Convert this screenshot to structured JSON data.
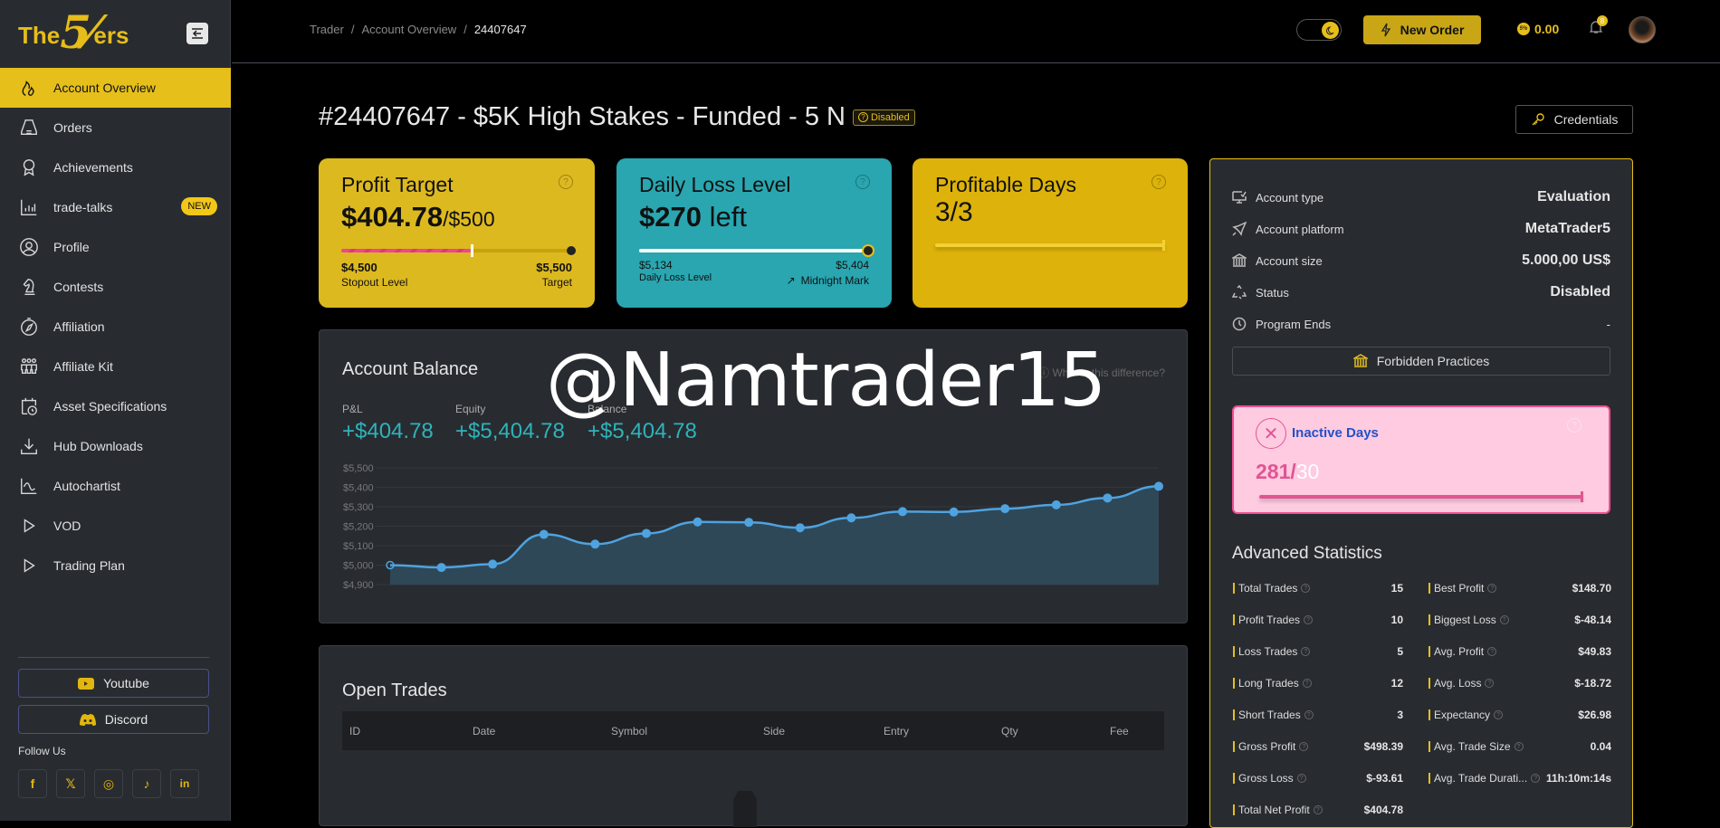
{
  "sidebar": {
    "logo": {
      "the": "The",
      "five": "5%",
      "ers": "ers"
    },
    "items": [
      {
        "label": "Account Overview",
        "icon": "flame-icon",
        "active": true
      },
      {
        "label": "Orders",
        "icon": "orders-icon"
      },
      {
        "label": "Achievements",
        "icon": "award-icon"
      },
      {
        "label": "trade-talks",
        "icon": "bar-chart-icon",
        "badge": "NEW"
      },
      {
        "label": "Profile",
        "icon": "user-circle-icon"
      },
      {
        "label": "Contests",
        "icon": "chess-knight-icon"
      },
      {
        "label": "Affiliation",
        "icon": "compass-icon"
      },
      {
        "label": "Affiliate Kit",
        "icon": "people-icon"
      },
      {
        "label": "Asset Specifications",
        "icon": "calendar-clock-icon"
      },
      {
        "label": "Hub Downloads",
        "icon": "download-icon"
      },
      {
        "label": "Autochartist",
        "icon": "chart-wave-icon"
      },
      {
        "label": "VOD",
        "icon": "play-icon"
      },
      {
        "label": "Trading Plan",
        "icon": "play-icon"
      }
    ],
    "youtube": "Youtube",
    "discord": "Discord",
    "follow_us": "Follow Us",
    "socials": [
      "f",
      "𝕏",
      "◎",
      "♪",
      "in"
    ]
  },
  "topbar": {
    "breadcrumb": [
      "Trader",
      "Account Overview",
      "24407647"
    ],
    "new_order": "New Order",
    "coins": "0.00",
    "coin_symbol": "5%",
    "notifications": "8"
  },
  "page": {
    "title": "#24407647 - $5K High Stakes - Funded - 5 N",
    "status": "Disabled",
    "credentials": "Credentials"
  },
  "cards": {
    "profit_target": {
      "title": "Profit Target",
      "value": "$404.78",
      "target": "/$500",
      "left_value": "$4,500",
      "left_label": "Stopout Level",
      "right_value": "$5,500",
      "right_label": "Target"
    },
    "daily_loss": {
      "title": "Daily Loss Level",
      "value": "$270",
      "suffix": " left",
      "left_value": "$5,134",
      "left_label": "Daily Loss Level",
      "right_value": "$5,404",
      "right_label": "Midnight Mark"
    },
    "profitable_days": {
      "title": "Profitable Days",
      "value": "3/3"
    }
  },
  "balance": {
    "title": "Account Balance",
    "difference_link": "What is this difference?",
    "pnl_label": "P&L",
    "pnl": "+$404.78",
    "equity_label": "Equity",
    "equity": "+$5,404.78",
    "balance_label": "Balance",
    "balance": "+$5,404.78"
  },
  "watermark": "@Namtrader15",
  "chart_data": {
    "type": "area",
    "title": "Account Balance",
    "x": [
      1,
      2,
      3,
      4,
      5,
      6,
      7,
      8,
      9,
      10,
      11,
      12,
      13,
      14,
      15,
      16
    ],
    "values": [
      5000,
      4988,
      5005,
      5158,
      5108,
      5163,
      5222,
      5220,
      5192,
      5243,
      5275,
      5273,
      5290,
      5310,
      5345,
      5405
    ],
    "yticks": [
      "$5,500",
      "$5,400",
      "$5,300",
      "$5,200",
      "$5,100",
      "$5,000",
      "$4,900"
    ],
    "ylim": [
      4900,
      5500
    ],
    "grid": true,
    "color": "#4ea3e0"
  },
  "info": {
    "rows": [
      {
        "label": "Account type",
        "value": "Evaluation",
        "icon": "monitor-check-icon"
      },
      {
        "label": "Account platform",
        "value": "MetaTrader5",
        "icon": "rocket-icon"
      },
      {
        "label": "Account size",
        "value": "5.000,00 US$",
        "icon": "bank-icon"
      },
      {
        "label": "Status",
        "value": "Disabled",
        "icon": "recycle-icon"
      },
      {
        "label": "Program Ends",
        "value": "-",
        "icon": "clock-icon"
      }
    ],
    "forbidden": "Forbidden Practices"
  },
  "inactive": {
    "title": "Inactive Days",
    "value": "281/",
    "max": "30"
  },
  "advanced": {
    "title": "Advanced Statistics",
    "left": [
      {
        "label": "Total Trades",
        "value": "15"
      },
      {
        "label": "Profit Trades",
        "value": "10"
      },
      {
        "label": "Loss Trades",
        "value": "5"
      },
      {
        "label": "Long Trades",
        "value": "12"
      },
      {
        "label": "Short Trades",
        "value": "3"
      },
      {
        "label": "Gross Profit",
        "value": "$498.39"
      },
      {
        "label": "Gross Loss",
        "value": "$-93.61"
      },
      {
        "label": "Total Net Profit",
        "value": "$404.78"
      }
    ],
    "right": [
      {
        "label": "Best Profit",
        "value": "$148.70"
      },
      {
        "label": "Biggest Loss",
        "value": "$-48.14"
      },
      {
        "label": "Avg. Profit",
        "value": "$49.83"
      },
      {
        "label": "Avg. Loss",
        "value": "$-18.72"
      },
      {
        "label": "Expectancy",
        "value": "$26.98"
      },
      {
        "label": "Avg. Trade Size",
        "value": "0.04"
      },
      {
        "label": "Avg. Trade Durati...",
        "value": "11h:10m:14s"
      }
    ]
  },
  "open_trades": {
    "title": "Open Trades",
    "columns": [
      "ID",
      "Date",
      "Symbol",
      "Side",
      "Entry",
      "Qty",
      "Fee"
    ]
  }
}
